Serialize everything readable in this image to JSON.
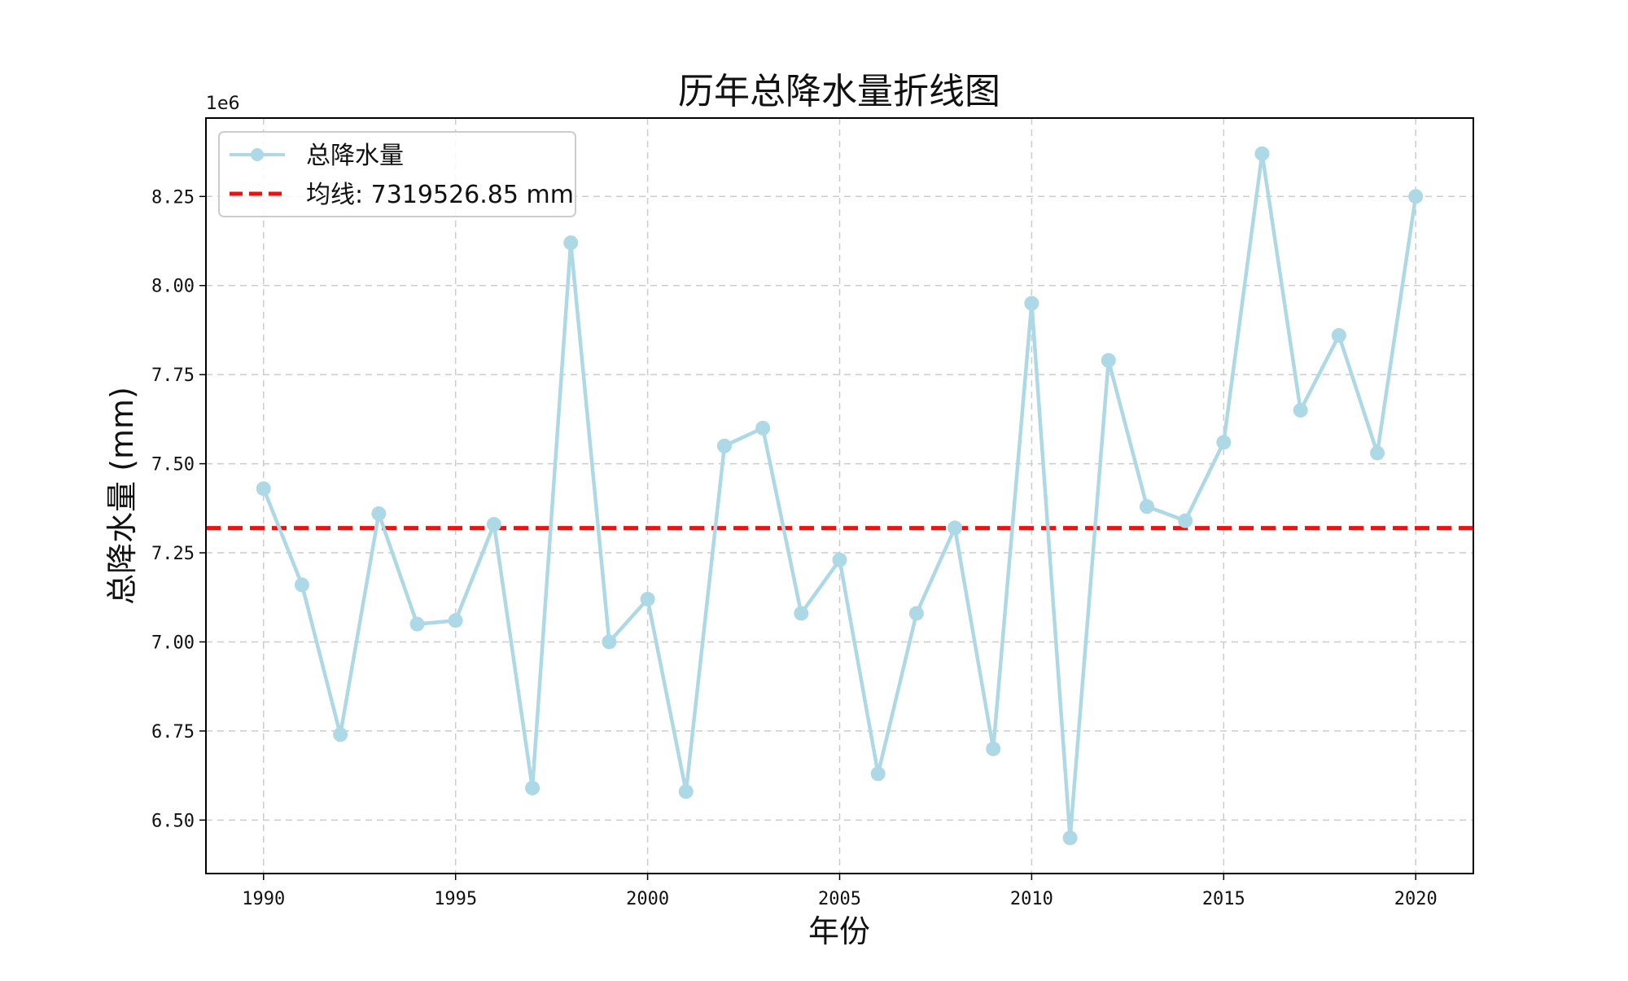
{
  "chart_data": {
    "type": "line",
    "title": "历年总降水量折线图",
    "xlabel": "年份",
    "ylabel": "总降水量 (mm)",
    "y_offset_label": "1e6",
    "y_scale": 1000000,
    "xlim": [
      1988.5,
      2021.5
    ],
    "ylim": [
      6.35,
      8.47
    ],
    "x_ticks": [
      1990,
      1995,
      2000,
      2005,
      2010,
      2015,
      2020
    ],
    "y_ticks": [
      6.5,
      6.75,
      7.0,
      7.25,
      7.5,
      7.75,
      8.0,
      8.25
    ],
    "y_tick_labels": [
      "6.50",
      "6.75",
      "7.00",
      "7.25",
      "7.50",
      "7.75",
      "8.00",
      "8.25"
    ],
    "grid": true,
    "legend_position": "top-left",
    "series": [
      {
        "name": "总降水量",
        "color": "#ADD8E6",
        "marker": "circle",
        "x": [
          1990,
          1991,
          1992,
          1993,
          1994,
          1995,
          1996,
          1997,
          1998,
          1999,
          2000,
          2001,
          2002,
          2003,
          2004,
          2005,
          2006,
          2007,
          2008,
          2009,
          2010,
          2011,
          2012,
          2013,
          2014,
          2015,
          2016,
          2017,
          2018,
          2019,
          2020
        ],
        "values": [
          7.43,
          7.16,
          6.74,
          7.36,
          7.05,
          7.06,
          7.33,
          6.59,
          8.12,
          7.0,
          7.12,
          6.58,
          7.55,
          7.6,
          7.08,
          7.23,
          6.63,
          7.08,
          7.32,
          6.7,
          7.95,
          6.45,
          7.79,
          7.38,
          7.34,
          7.56,
          8.37,
          7.65,
          7.86,
          7.53,
          8.25
        ]
      }
    ],
    "mean_line": {
      "name": "均线: 7319526.85 mm",
      "value": 7.31952685,
      "color": "#EE1111",
      "style": "dashed"
    }
  }
}
